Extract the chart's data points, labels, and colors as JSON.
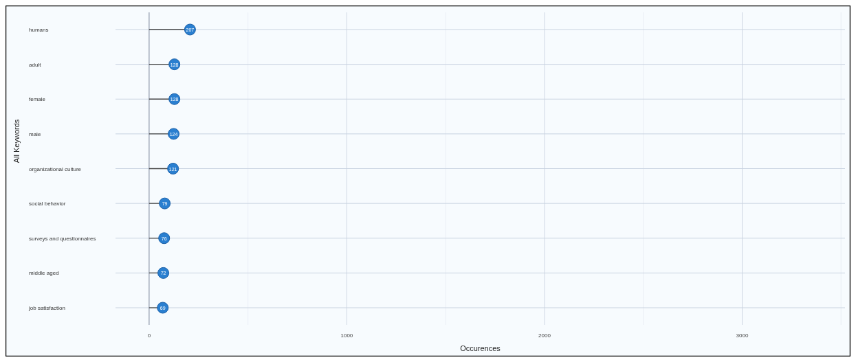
{
  "chart_data": {
    "type": "lollipop",
    "orientation": "horizontal",
    "xlabel": "Occurences",
    "ylabel": "All Keywords",
    "categories": [
      "humans",
      "adult",
      "female",
      "male",
      "organizational culture",
      "social behavior",
      "surveys and questionnaires",
      "middle aged",
      "job satisfaction"
    ],
    "values": [
      207,
      128,
      128,
      124,
      121,
      79,
      76,
      72,
      69
    ],
    "color": "#2a7fd0",
    "data_labels": true,
    "grid": true,
    "xlim": [
      -170,
      3520
    ],
    "xticks": [
      0,
      {
        "value": 500,
        "label": null
      },
      1000,
      {
        "value": 1500,
        "label": null
      },
      2000,
      {
        "value": 2500,
        "label": null
      },
      3000,
      {
        "value": 3500,
        "label": null
      }
    ]
  }
}
